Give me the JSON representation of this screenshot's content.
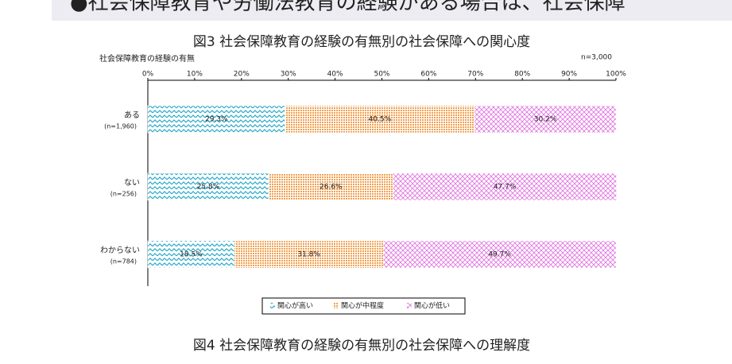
{
  "banner": "●社会保障教育や労働法教育の経験がある場合は、社会保障",
  "chart_data": {
    "type": "stacked-barh",
    "title": "図3 社会保障教育の経験の有無別の社会保障への関心度",
    "y_label": "社会保障教育の経験の有無",
    "note": "n=3,000",
    "categories": [
      "ある",
      "ない",
      "わからない"
    ],
    "category_counts": [
      "(n=1,960)",
      "(n=256)",
      "(n=784)"
    ],
    "xlim": [
      0,
      100
    ],
    "xticks": [
      {
        "value": 0,
        "label": "0%"
      },
      {
        "value": 10,
        "label": "10%"
      },
      {
        "value": 20,
        "label": "20%"
      },
      {
        "value": 30,
        "label": "30%"
      },
      {
        "value": 40,
        "label": "40%"
      },
      {
        "value": 50,
        "label": "50%"
      },
      {
        "value": 60,
        "label": "60%"
      },
      {
        "value": 70,
        "label": "70%"
      },
      {
        "value": 80,
        "label": "80%"
      },
      {
        "value": 90,
        "label": "90%"
      },
      {
        "value": 100,
        "label": "100%"
      }
    ],
    "series": [
      {
        "name": "関心が高い",
        "color": "#2aa9c9",
        "values": [
          29.3,
          25.8,
          18.5
        ],
        "value_labels": [
          "29.3%",
          "25.8%",
          "18.5%"
        ]
      },
      {
        "name": "関心が中程度",
        "color": "#f0a050",
        "values": [
          40.5,
          26.6,
          31.8
        ],
        "value_labels": [
          "40.5%",
          "26.6%",
          "31.8%"
        ]
      },
      {
        "name": "関心が低い",
        "color": "#e070e0",
        "values": [
          30.2,
          47.7,
          49.7
        ],
        "value_labels": [
          "30.2%",
          "47.7%",
          "49.7%"
        ]
      }
    ]
  },
  "next_title": "図4 社会保障教育の経験の有無別の社会保障への理解度"
}
